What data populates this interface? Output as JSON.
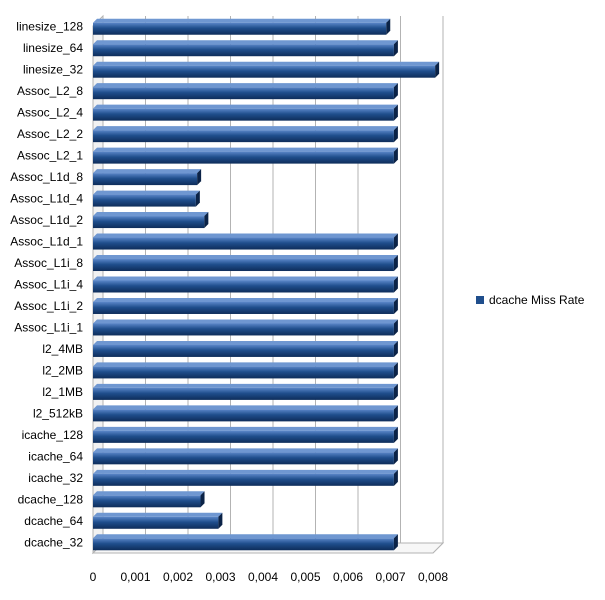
{
  "chart_data": {
    "type": "bar",
    "orientation": "horizontal",
    "categories": [
      "dcache_32",
      "dcache_64",
      "dcache_128",
      "icache_32",
      "icache_64",
      "icache_128",
      "l2_512kB",
      "l2_1MB",
      "l2_2MB",
      "l2_4MB",
      "Assoc_L1i_1",
      "Assoc_L1i_2",
      "Assoc_L1i_4",
      "Assoc_L1i_8",
      "Assoc_L1d_1",
      "Assoc_L1d_2",
      "Assoc_L1d_4",
      "Assoc_L1d_8",
      "Assoc_L2_1",
      "Assoc_L2_2",
      "Assoc_L2_4",
      "Assoc_L2_8",
      "linesize_32",
      "linesize_64",
      "linesize_128"
    ],
    "series": [
      {
        "name": "dcache Miss Rate",
        "color": "#1f4e8c",
        "values": [
          0.00708,
          0.00295,
          0.00253,
          0.00708,
          0.00708,
          0.00708,
          0.00708,
          0.00708,
          0.00708,
          0.00708,
          0.00708,
          0.00708,
          0.00708,
          0.00708,
          0.00708,
          0.00262,
          0.00242,
          0.00245,
          0.00708,
          0.00708,
          0.00708,
          0.00708,
          0.00805,
          0.00708,
          0.0069
        ]
      }
    ],
    "x_ticks": [
      "0",
      "0,001",
      "0,002",
      "0,003",
      "0,004",
      "0,005",
      "0,006",
      "0,007",
      "0,008"
    ],
    "xlim": [
      0,
      0.008
    ],
    "grid": true,
    "legend_position": "right"
  }
}
